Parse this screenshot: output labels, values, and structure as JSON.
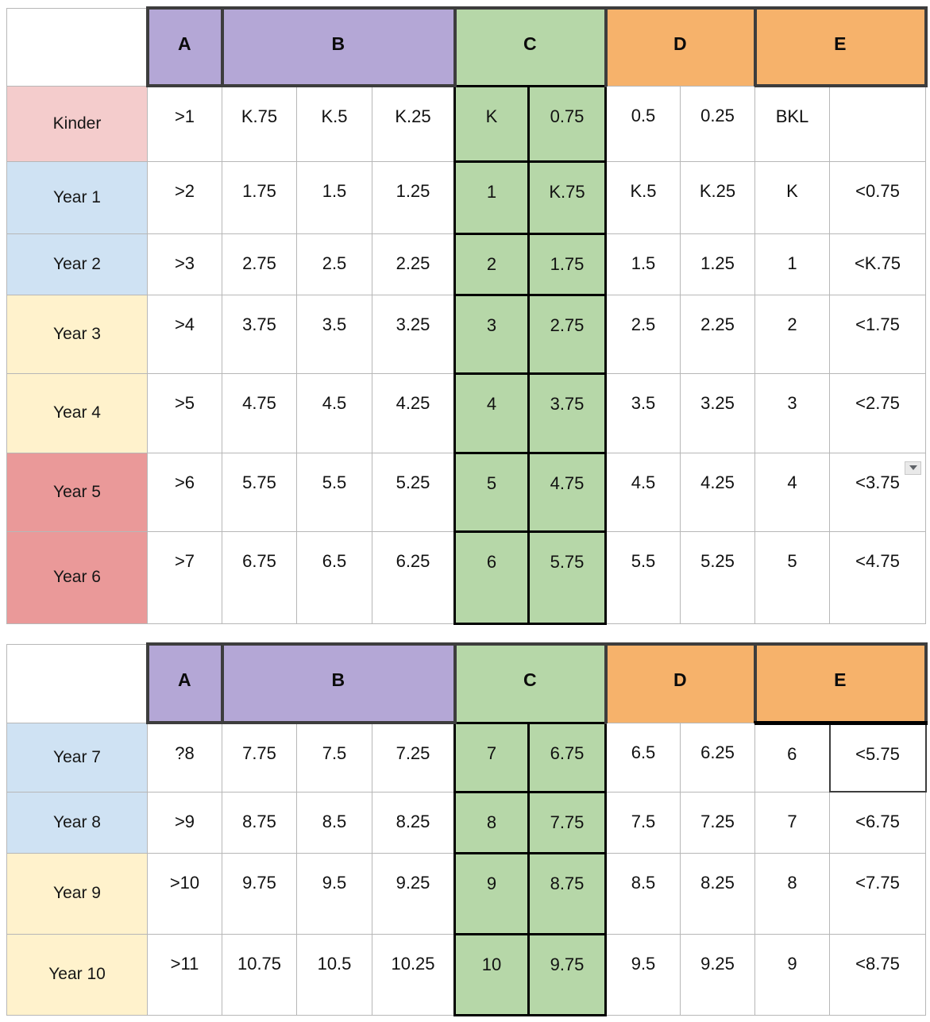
{
  "colors": {
    "purple": "#b4a7d6",
    "green": "#b6d7a8",
    "orange": "#f6b26b",
    "pink": "#f4cccc",
    "blue": "#cfe2f3",
    "cream": "#fff2cc",
    "red": "#ea9999",
    "thin_border": "#b7b7b7",
    "thick_border": "#3d3d3d",
    "black_border": "#000000"
  },
  "tables": [
    {
      "name": "upper",
      "column_groups": [
        {
          "label": "A",
          "span": 1,
          "color": "#b4a7d6"
        },
        {
          "label": "B",
          "span": 3,
          "color": "#b4a7d6"
        },
        {
          "label": "C",
          "span": 2,
          "color": "#b6d7a8"
        },
        {
          "label": "D",
          "span": 2,
          "color": "#f6b26b"
        },
        {
          "label": "E",
          "span": 2,
          "color": "#f6b26b"
        }
      ],
      "rows": [
        {
          "label": "Kinder",
          "label_bg": "#f4cccc",
          "cells": [
            ">1",
            "K.75",
            "K.5",
            "K.25",
            "K",
            "0.75",
            "0.5",
            "0.25",
            "BKL",
            ""
          ]
        },
        {
          "label": "Year 1",
          "label_bg": "#cfe2f3",
          "cells": [
            ">2",
            "1.75",
            "1.5",
            "1.25",
            "1",
            "K.75",
            "K.5",
            "K.25",
            "K",
            "<0.75"
          ]
        },
        {
          "label": "Year 2",
          "label_bg": "#cfe2f3",
          "cells": [
            ">3",
            "2.75",
            "2.5",
            "2.25",
            "2",
            "1.75",
            "1.5",
            "1.25",
            "1",
            "<K.75"
          ]
        },
        {
          "label": "Year 3",
          "label_bg": "#fff2cc",
          "cells": [
            ">4",
            "3.75",
            "3.5",
            "3.25",
            "3",
            "2.75",
            "2.5",
            "2.25",
            "2",
            "<1.75"
          ]
        },
        {
          "label": "Year 4",
          "label_bg": "#fff2cc",
          "cells": [
            ">5",
            "4.75",
            "4.5",
            "4.25",
            "4",
            "3.75",
            "3.5",
            "3.25",
            "3",
            "<2.75"
          ]
        },
        {
          "label": "Year 5",
          "label_bg": "#ea9999",
          "dropdown_cell": 9,
          "cells": [
            ">6",
            "5.75",
            "5.5",
            "5.25",
            "5",
            "4.75",
            "4.5",
            "4.25",
            "4",
            "<3.75"
          ]
        },
        {
          "label": "Year 6",
          "label_bg": "#ea9999",
          "cells": [
            ">7",
            "6.75",
            "6.5",
            "6.25",
            "6",
            "5.75",
            "5.5",
            "5.25",
            "5",
            "<4.75"
          ]
        }
      ]
    },
    {
      "name": "lower",
      "column_groups": [
        {
          "label": "A",
          "span": 1,
          "color": "#b4a7d6"
        },
        {
          "label": "B",
          "span": 3,
          "color": "#b4a7d6"
        },
        {
          "label": "C",
          "span": 2,
          "color": "#b6d7a8"
        },
        {
          "label": "D",
          "span": 2,
          "color": "#f6b26b"
        },
        {
          "label": "E",
          "span": 2,
          "color": "#f6b26b"
        }
      ],
      "rows": [
        {
          "label": "Year 7",
          "label_bg": "#cfe2f3",
          "outlined_cell": 9,
          "cells": [
            "?8",
            "7.75",
            "7.5",
            "7.25",
            "7",
            "6.75",
            "6.5",
            "6.25",
            "6",
            "<5.75"
          ]
        },
        {
          "label": "Year 8",
          "label_bg": "#cfe2f3",
          "cells": [
            ">9",
            "8.75",
            "8.5",
            "8.25",
            "8",
            "7.75",
            "7.5",
            "7.25",
            "7",
            "<6.75"
          ]
        },
        {
          "label": "Year 9",
          "label_bg": "#fff2cc",
          "cells": [
            ">10",
            "9.75",
            "9.5",
            "9.25",
            "9",
            "8.75",
            "8.5",
            "8.25",
            "8",
            "<7.75"
          ]
        },
        {
          "label": "Year 10",
          "label_bg": "#fff2cc",
          "cells": [
            ">11",
            "10.75",
            "10.5",
            "10.25",
            "10",
            "9.75",
            "9.5",
            "9.25",
            "9",
            "<8.75"
          ]
        }
      ]
    }
  ]
}
